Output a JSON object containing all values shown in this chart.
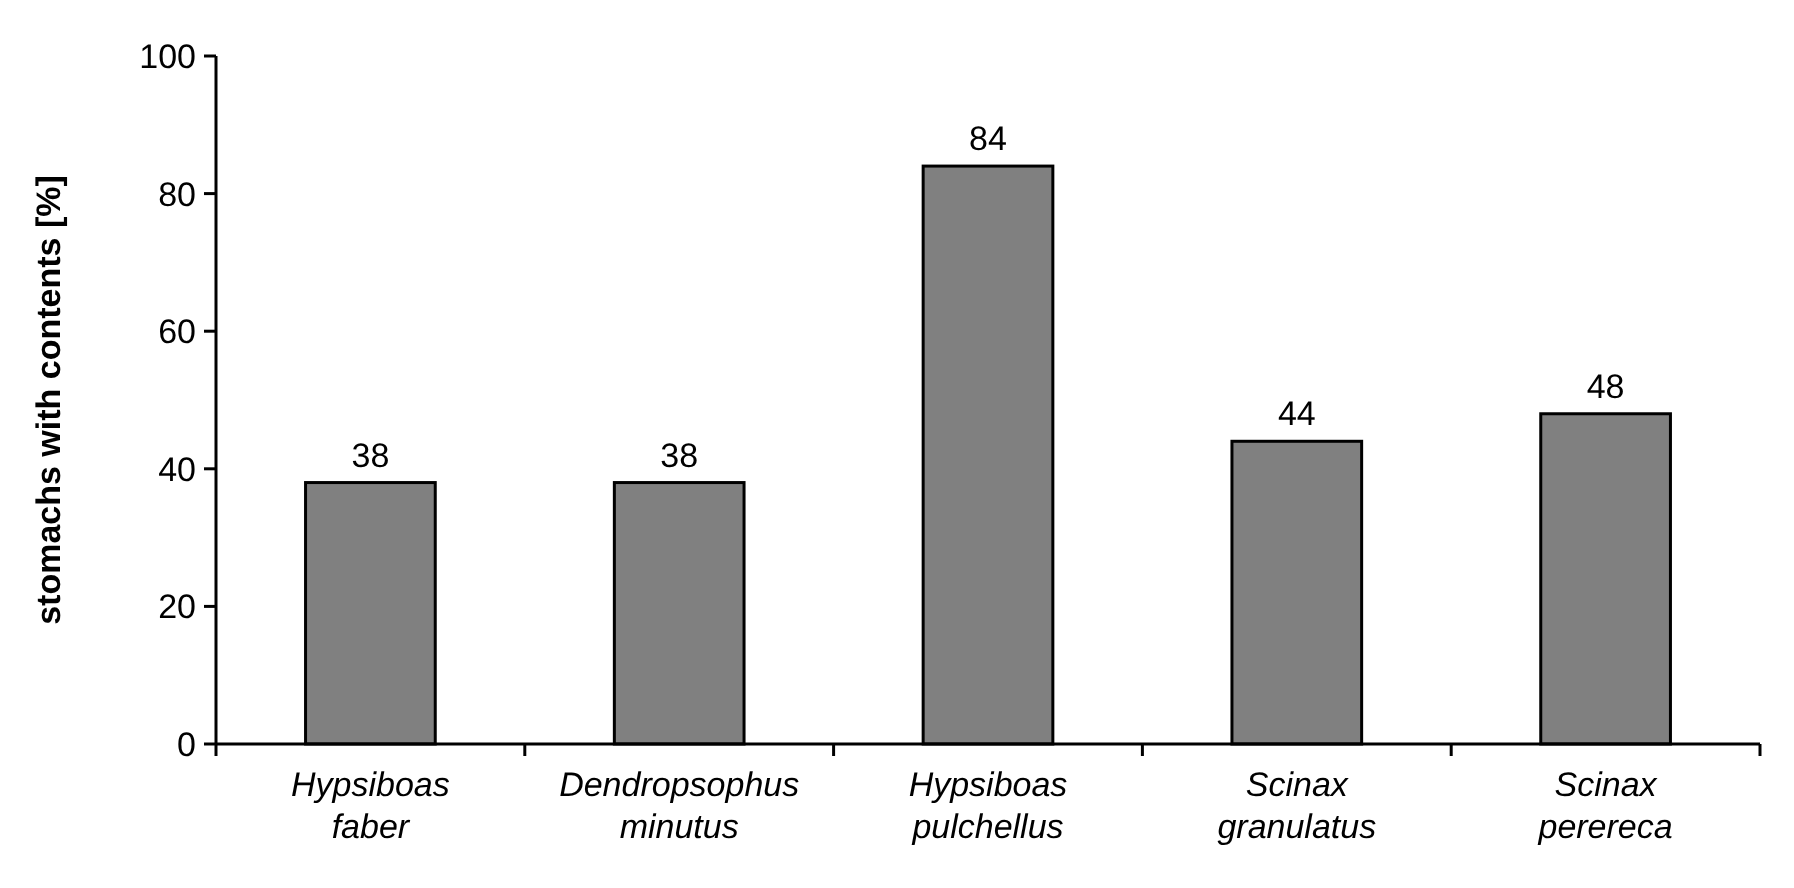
{
  "chart_data": {
    "type": "bar",
    "ylabel": "stomachs with contents [%]",
    "categories": [
      "Hypsiboas faber",
      "Dendropsophus minutus",
      "Hypsiboas pulchellus",
      "Scinax granulatus",
      "Scinax perereca"
    ],
    "values": [
      38,
      38,
      84,
      44,
      48
    ],
    "color": "#808080",
    "ylim": [
      0,
      100
    ],
    "yticks": [
      0,
      20,
      40,
      60,
      80,
      100
    ],
    "grid": false,
    "data_labels": true
  }
}
